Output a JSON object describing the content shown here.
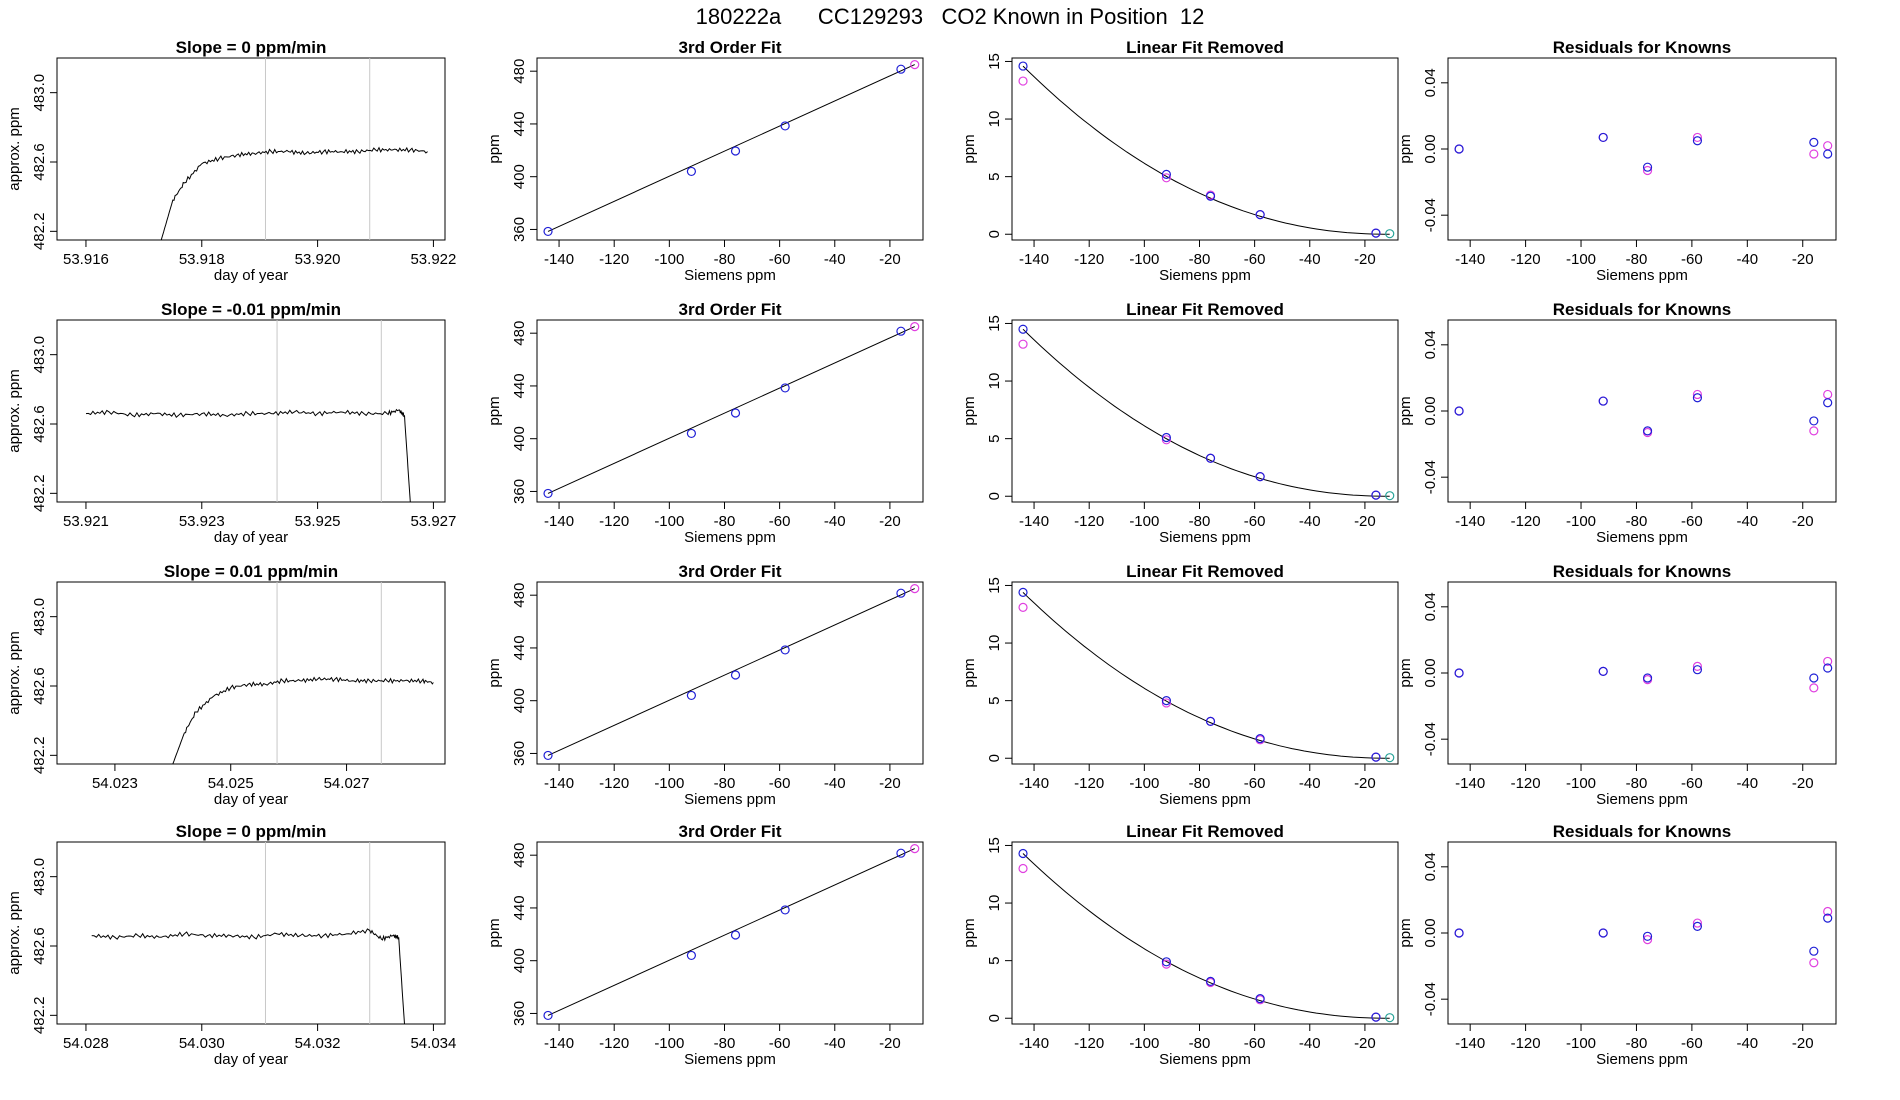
{
  "title": "180222a      CC129293   CO2 Known in Position  12",
  "colors": {
    "trace": "#000000",
    "gridline": "#c8c8c8",
    "blue": "#1f1fd6",
    "magenta": "#e040e0",
    "teal": "#2aa59a"
  },
  "chart_data": [
    {
      "type": "line",
      "title": "Slope =  0  ppm/min",
      "xlabel": "day of year",
      "ylabel": "approx. ppm",
      "xlim": [
        53.9155,
        53.9222
      ],
      "ylim": [
        482.15,
        483.2
      ],
      "xticks": [
        53.916,
        53.918,
        53.92,
        53.922
      ],
      "xticklabels": [
        "53.916",
        "53.918",
        "53.920",
        "53.922"
      ],
      "yticks": [
        482.2,
        482.6,
        483.0
      ],
      "yticklabels": [
        "482.2",
        "482.6",
        "483.0"
      ],
      "vlines": [
        53.9191,
        53.9209
      ],
      "x": [
        53.9173,
        53.9175,
        53.9177,
        53.918,
        53.9183,
        53.9186,
        53.9189,
        53.9192,
        53.9195,
        53.9198,
        53.9201,
        53.9204,
        53.9207,
        53.921,
        53.9213,
        53.9216,
        53.9219
      ],
      "y": [
        482.15,
        482.38,
        482.48,
        482.59,
        482.62,
        482.64,
        482.65,
        482.66,
        482.66,
        482.65,
        482.66,
        482.66,
        482.66,
        482.67,
        482.67,
        482.67,
        482.66
      ]
    },
    {
      "type": "line",
      "title": "3rd Order Fit",
      "xlabel": "Siemens ppm",
      "ylabel": "ppm",
      "xlim": [
        -148,
        -8
      ],
      "ylim": [
        352,
        490
      ],
      "xticks": [
        -140,
        -120,
        -100,
        -80,
        -60,
        -40,
        -20
      ],
      "xticklabels": [
        "-140",
        "-120",
        "-100",
        "-80",
        "-60",
        "-40",
        "-20"
      ],
      "yticks": [
        360,
        400,
        440,
        480
      ],
      "yticklabels": [
        "360",
        "400",
        "440",
        "480"
      ],
      "fit_x": [
        -144,
        -11
      ],
      "fit_y": [
        358.5,
        485
      ],
      "points_blue": {
        "x": [
          -144,
          -92,
          -76,
          -58,
          -16
        ],
        "y": [
          358.5,
          404,
          419.5,
          438.5,
          481.5
        ]
      },
      "points_magenta": {
        "x": [
          -11
        ],
        "y": [
          485
        ]
      }
    },
    {
      "type": "line",
      "title": "Linear Fit Removed",
      "xlabel": "Siemens ppm",
      "ylabel": "ppm",
      "xlim": [
        -148,
        -8
      ],
      "ylim": [
        -0.5,
        15.3
      ],
      "xticks": [
        -140,
        -120,
        -100,
        -80,
        -60,
        -40,
        -20
      ],
      "xticklabels": [
        "-140",
        "-120",
        "-100",
        "-80",
        "-60",
        "-40",
        "-20"
      ],
      "yticks": [
        0,
        5,
        10,
        15
      ],
      "yticklabels": [
        "0",
        "5",
        "10",
        "15"
      ],
      "curve_peak": 14.6,
      "points_blue": {
        "x": [
          -144,
          -92,
          -76,
          -58,
          -16
        ],
        "y": [
          14.6,
          5.2,
          3.3,
          1.7,
          0.1
        ]
      },
      "points_magenta": {
        "x": [
          -144,
          -92,
          -76,
          -58,
          -16
        ],
        "y": [
          13.3,
          4.9,
          3.4,
          1.7,
          0.1
        ]
      },
      "points_teal": {
        "x": [
          -11
        ],
        "y": [
          0.05
        ]
      }
    },
    {
      "type": "scatter",
      "title": "Residuals for Knowns",
      "xlabel": "Siemens ppm",
      "ylabel": "ppm",
      "xlim": [
        -148,
        -8
      ],
      "ylim": [
        -0.055,
        0.055
      ],
      "xticks": [
        -140,
        -120,
        -100,
        -80,
        -60,
        -40,
        -20
      ],
      "xticklabels": [
        "-140",
        "-120",
        "-100",
        "-80",
        "-60",
        "-40",
        "-20"
      ],
      "yticks": [
        -0.04,
        0,
        0.04
      ],
      "yticklabels": [
        "-0.04",
        "0.00",
        "0.04"
      ],
      "points_blue": {
        "x": [
          -144,
          -92,
          -76,
          -58,
          -16,
          -11
        ],
        "y": [
          0.0,
          0.007,
          -0.011,
          0.005,
          0.004,
          -0.003
        ]
      },
      "points_magenta": {
        "x": [
          -144,
          -92,
          -76,
          -58,
          -16,
          -11
        ],
        "y": [
          0.0,
          0.007,
          -0.013,
          0.007,
          -0.003,
          0.002
        ]
      }
    },
    {
      "type": "line",
      "title": "Slope =  -0.01  ppm/min",
      "xlabel": "day of year",
      "ylabel": "approx. ppm",
      "xlim": [
        53.9205,
        53.9272
      ],
      "ylim": [
        482.15,
        483.2
      ],
      "xticks": [
        53.921,
        53.923,
        53.925,
        53.927
      ],
      "xticklabels": [
        "53.921",
        "53.923",
        "53.925",
        "53.927"
      ],
      "yticks": [
        482.2,
        482.6,
        483.0
      ],
      "yticklabels": [
        "482.2",
        "482.6",
        "483.0"
      ],
      "vlines": [
        53.9243,
        53.9261
      ],
      "x": [
        53.921,
        53.9214,
        53.9218,
        53.9222,
        53.9226,
        53.923,
        53.9234,
        53.9238,
        53.9242,
        53.9246,
        53.925,
        53.9254,
        53.9258,
        53.9262,
        53.9264,
        53.9265,
        53.9266
      ],
      "y": [
        482.66,
        482.67,
        482.65,
        482.66,
        482.65,
        482.66,
        482.65,
        482.66,
        482.66,
        482.67,
        482.66,
        482.67,
        482.66,
        482.66,
        482.68,
        482.65,
        482.15
      ]
    },
    {
      "type": "line",
      "title": "3rd Order Fit",
      "xlabel": "Siemens ppm",
      "ylabel": "ppm",
      "xlim": [
        -148,
        -8
      ],
      "ylim": [
        352,
        490
      ],
      "xticks": [
        -140,
        -120,
        -100,
        -80,
        -60,
        -40,
        -20
      ],
      "xticklabels": [
        "-140",
        "-120",
        "-100",
        "-80",
        "-60",
        "-40",
        "-20"
      ],
      "yticks": [
        360,
        400,
        440,
        480
      ],
      "yticklabels": [
        "360",
        "400",
        "440",
        "480"
      ],
      "fit_x": [
        -144,
        -11
      ],
      "fit_y": [
        358.5,
        485
      ],
      "points_blue": {
        "x": [
          -144,
          -92,
          -76,
          -58,
          -16
        ],
        "y": [
          358.5,
          404,
          419.5,
          438.5,
          481.5
        ]
      },
      "points_magenta": {
        "x": [
          -11
        ],
        "y": [
          485
        ]
      }
    },
    {
      "type": "line",
      "title": "Linear Fit Removed",
      "xlabel": "Siemens ppm",
      "ylabel": "ppm",
      "xlim": [
        -148,
        -8
      ],
      "ylim": [
        -0.5,
        15.3
      ],
      "xticks": [
        -140,
        -120,
        -100,
        -80,
        -60,
        -40,
        -20
      ],
      "xticklabels": [
        "-140",
        "-120",
        "-100",
        "-80",
        "-60",
        "-40",
        "-20"
      ],
      "yticks": [
        0,
        5,
        10,
        15
      ],
      "yticklabels": [
        "0",
        "5",
        "10",
        "15"
      ],
      "curve_peak": 14.5,
      "points_blue": {
        "x": [
          -144,
          -92,
          -76,
          -58,
          -16
        ],
        "y": [
          14.5,
          5.1,
          3.3,
          1.7,
          0.1
        ]
      },
      "points_magenta": {
        "x": [
          -144,
          -92,
          -76,
          -58,
          -16
        ],
        "y": [
          13.2,
          4.9,
          3.3,
          1.7,
          0.1
        ]
      },
      "points_teal": {
        "x": [
          -11
        ],
        "y": [
          0.05
        ]
      }
    },
    {
      "type": "scatter",
      "title": "Residuals for Knowns",
      "xlabel": "Siemens ppm",
      "ylabel": "ppm",
      "xlim": [
        -148,
        -8
      ],
      "ylim": [
        -0.055,
        0.055
      ],
      "xticks": [
        -140,
        -120,
        -100,
        -80,
        -60,
        -40,
        -20
      ],
      "xticklabels": [
        "-140",
        "-120",
        "-100",
        "-80",
        "-60",
        "-40",
        "-20"
      ],
      "yticks": [
        -0.04,
        0,
        0.04
      ],
      "yticklabels": [
        "-0.04",
        "0.00",
        "0.04"
      ],
      "points_blue": {
        "x": [
          -144,
          -92,
          -76,
          -58,
          -16,
          -11
        ],
        "y": [
          0.0,
          0.006,
          -0.012,
          0.008,
          -0.006,
          0.005
        ]
      },
      "points_magenta": {
        "x": [
          -144,
          -92,
          -76,
          -58,
          -16,
          -11
        ],
        "y": [
          0.0,
          0.006,
          -0.013,
          0.01,
          -0.012,
          0.01
        ]
      }
    },
    {
      "type": "line",
      "title": "Slope =  0.01  ppm/min",
      "xlabel": "day of year",
      "ylabel": "approx. ppm",
      "xlim": [
        54.022,
        54.0287
      ],
      "ylim": [
        482.15,
        483.2
      ],
      "xticks": [
        54.023,
        54.025,
        54.027
      ],
      "xticklabels": [
        "54.023",
        "54.025",
        "54.027"
      ],
      "yticks": [
        482.2,
        482.6,
        483.0
      ],
      "yticklabels": [
        "482.2",
        "482.6",
        "483.0"
      ],
      "vlines": [
        54.0258,
        54.0276
      ],
      "x": [
        54.024,
        54.0242,
        54.0244,
        54.0247,
        54.025,
        54.0253,
        54.0256,
        54.0259,
        54.0262,
        54.0265,
        54.0268,
        54.0271,
        54.0274,
        54.0277,
        54.028,
        54.0283,
        54.0285
      ],
      "y": [
        482.15,
        482.33,
        482.45,
        482.54,
        482.59,
        482.61,
        482.61,
        482.63,
        482.63,
        482.64,
        482.64,
        482.63,
        482.63,
        482.63,
        482.63,
        482.63,
        482.62
      ]
    },
    {
      "type": "line",
      "title": "3rd Order Fit",
      "xlabel": "Siemens ppm",
      "ylabel": "ppm",
      "xlim": [
        -148,
        -8
      ],
      "ylim": [
        352,
        490
      ],
      "xticks": [
        -140,
        -120,
        -100,
        -80,
        -60,
        -40,
        -20
      ],
      "xticklabels": [
        "-140",
        "-120",
        "-100",
        "-80",
        "-60",
        "-40",
        "-20"
      ],
      "yticks": [
        360,
        400,
        440,
        480
      ],
      "yticklabels": [
        "360",
        "400",
        "440",
        "480"
      ],
      "fit_x": [
        -144,
        -11
      ],
      "fit_y": [
        358.5,
        485
      ],
      "points_blue": {
        "x": [
          -144,
          -92,
          -76,
          -58,
          -16
        ],
        "y": [
          358.5,
          404,
          419.5,
          438.5,
          481.5
        ]
      },
      "points_magenta": {
        "x": [
          -11
        ],
        "y": [
          485
        ]
      }
    },
    {
      "type": "line",
      "title": "Linear Fit Removed",
      "xlabel": "Siemens ppm",
      "ylabel": "ppm",
      "xlim": [
        -148,
        -8
      ],
      "ylim": [
        -0.5,
        15.3
      ],
      "xticks": [
        -140,
        -120,
        -100,
        -80,
        -60,
        -40,
        -20
      ],
      "xticklabels": [
        "-140",
        "-120",
        "-100",
        "-80",
        "-60",
        "-40",
        "-20"
      ],
      "yticks": [
        0,
        5,
        10,
        15
      ],
      "yticklabels": [
        "0",
        "5",
        "10",
        "15"
      ],
      "curve_peak": 14.4,
      "points_blue": {
        "x": [
          -144,
          -92,
          -76,
          -58,
          -16
        ],
        "y": [
          14.4,
          5.0,
          3.2,
          1.7,
          0.1
        ]
      },
      "points_magenta": {
        "x": [
          -144,
          -92,
          -76,
          -58,
          -16
        ],
        "y": [
          13.1,
          4.8,
          3.2,
          1.6,
          0.1
        ]
      },
      "points_teal": {
        "x": [
          -11
        ],
        "y": [
          0.05
        ]
      }
    },
    {
      "type": "scatter",
      "title": "Residuals for Knowns",
      "xlabel": "Siemens ppm",
      "ylabel": "ppm",
      "xlim": [
        -148,
        -8
      ],
      "ylim": [
        -0.055,
        0.055
      ],
      "xticks": [
        -140,
        -120,
        -100,
        -80,
        -60,
        -40,
        -20
      ],
      "xticklabels": [
        "-140",
        "-120",
        "-100",
        "-80",
        "-60",
        "-40",
        "-20"
      ],
      "yticks": [
        -0.04,
        0,
        0.04
      ],
      "yticklabels": [
        "-0.04",
        "0.00",
        "0.04"
      ],
      "points_blue": {
        "x": [
          -144,
          -92,
          -76,
          -58,
          -16,
          -11
        ],
        "y": [
          0.0,
          0.001,
          -0.003,
          0.002,
          -0.003,
          0.003
        ]
      },
      "points_magenta": {
        "x": [
          -144,
          -92,
          -76,
          -58,
          -16,
          -11
        ],
        "y": [
          0.0,
          0.001,
          -0.004,
          0.004,
          -0.009,
          0.007
        ]
      }
    },
    {
      "type": "line",
      "title": "Slope =  0  ppm/min",
      "xlabel": "day of year",
      "ylabel": "approx. ppm",
      "xlim": [
        54.0275,
        54.0342
      ],
      "ylim": [
        482.15,
        483.2
      ],
      "xticks": [
        54.028,
        54.03,
        54.032,
        54.034
      ],
      "xticklabels": [
        "54.028",
        "54.030",
        "54.032",
        "54.034"
      ],
      "yticks": [
        482.2,
        482.6,
        483.0
      ],
      "yticklabels": [
        "482.2",
        "482.6",
        "483.0"
      ],
      "vlines": [
        54.0311,
        54.0329
      ],
      "x": [
        54.0281,
        54.0285,
        54.0289,
        54.0293,
        54.0297,
        54.0301,
        54.0305,
        54.0309,
        54.0313,
        54.0317,
        54.0321,
        54.0325,
        54.0329,
        54.0331,
        54.0333,
        54.0334,
        54.0335
      ],
      "y": [
        482.66,
        482.65,
        482.66,
        482.65,
        482.67,
        482.66,
        482.66,
        482.65,
        482.67,
        482.66,
        482.66,
        482.67,
        482.69,
        482.64,
        482.66,
        482.65,
        482.15
      ]
    },
    {
      "type": "line",
      "title": "3rd Order Fit",
      "xlabel": "Siemens ppm",
      "ylabel": "ppm",
      "xlim": [
        -148,
        -8
      ],
      "ylim": [
        352,
        490
      ],
      "xticks": [
        -140,
        -120,
        -100,
        -80,
        -60,
        -40,
        -20
      ],
      "xticklabels": [
        "-140",
        "-120",
        "-100",
        "-80",
        "-60",
        "-40",
        "-20"
      ],
      "yticks": [
        360,
        400,
        440,
        480
      ],
      "yticklabels": [
        "360",
        "400",
        "440",
        "480"
      ],
      "fit_x": [
        -144,
        -11
      ],
      "fit_y": [
        358.5,
        485
      ],
      "points_blue": {
        "x": [
          -144,
          -92,
          -76,
          -58,
          -16
        ],
        "y": [
          358.5,
          404,
          419.5,
          438.5,
          481.5
        ]
      },
      "points_magenta": {
        "x": [
          -11
        ],
        "y": [
          485
        ]
      }
    },
    {
      "type": "line",
      "title": "Linear Fit Removed",
      "xlabel": "Siemens ppm",
      "ylabel": "ppm",
      "xlim": [
        -148,
        -8
      ],
      "ylim": [
        -0.5,
        15.3
      ],
      "xticks": [
        -140,
        -120,
        -100,
        -80,
        -60,
        -40,
        -20
      ],
      "xticklabels": [
        "-140",
        "-120",
        "-100",
        "-80",
        "-60",
        "-40",
        "-20"
      ],
      "yticks": [
        0,
        5,
        10,
        15
      ],
      "yticklabels": [
        "0",
        "5",
        "10",
        "15"
      ],
      "curve_peak": 14.3,
      "points_blue": {
        "x": [
          -144,
          -92,
          -76,
          -58,
          -16
        ],
        "y": [
          14.3,
          4.9,
          3.2,
          1.7,
          0.1
        ]
      },
      "points_magenta": {
        "x": [
          -144,
          -92,
          -76,
          -58,
          -16
        ],
        "y": [
          13.0,
          4.7,
          3.1,
          1.6,
          0.1
        ]
      },
      "points_teal": {
        "x": [
          -11
        ],
        "y": [
          0.05
        ]
      }
    },
    {
      "type": "scatter",
      "title": "Residuals for Knowns",
      "xlabel": "Siemens ppm",
      "ylabel": "ppm",
      "xlim": [
        -148,
        -8
      ],
      "ylim": [
        -0.055,
        0.055
      ],
      "xticks": [
        -140,
        -120,
        -100,
        -80,
        -60,
        -40,
        -20
      ],
      "xticklabels": [
        "-140",
        "-120",
        "-100",
        "-80",
        "-60",
        "-40",
        "-20"
      ],
      "yticks": [
        -0.04,
        0,
        0.04
      ],
      "yticklabels": [
        "-0.04",
        "0.00",
        "0.04"
      ],
      "points_blue": {
        "x": [
          -144,
          -92,
          -76,
          -58,
          -16,
          -11
        ],
        "y": [
          0.0,
          0.0,
          -0.002,
          0.004,
          -0.011,
          0.009
        ]
      },
      "points_magenta": {
        "x": [
          -144,
          -92,
          -76,
          -58,
          -16,
          -11
        ],
        "y": [
          0.0,
          0.0,
          -0.004,
          0.006,
          -0.018,
          0.013
        ]
      }
    }
  ]
}
